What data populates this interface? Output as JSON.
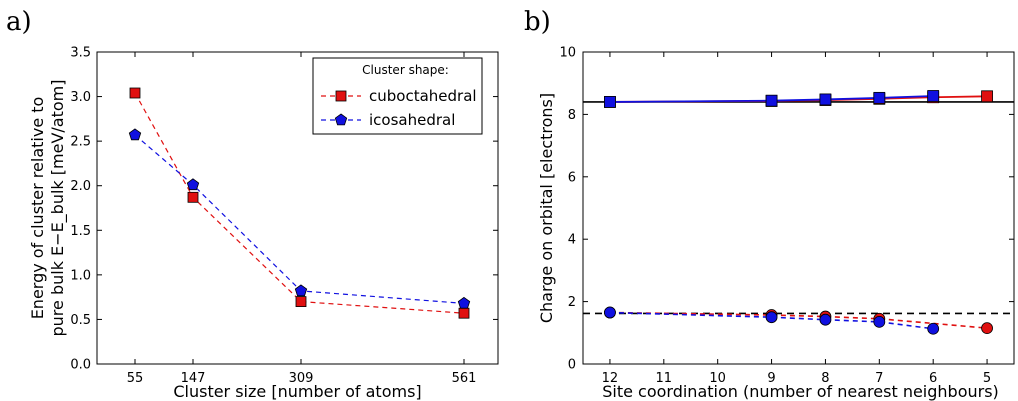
{
  "chart_data": [
    {
      "panel_label": "a)",
      "type": "line",
      "x": [
        55,
        147,
        309,
        561
      ],
      "xlabel": "Cluster size [number of atoms]",
      "ylabel_lines": [
        "Energy of cluster relative to",
        "pure bulk E−E_bulk [meV/atom]"
      ],
      "ylim": [
        0.0,
        3.5
      ],
      "y_ticks": [
        "0.0",
        "0.5",
        "1.0",
        "1.5",
        "2.0",
        "2.5",
        "3.0",
        "3.5"
      ],
      "x_ticks": [
        "55",
        "147",
        "309",
        "561"
      ],
      "legend": {
        "title": "Cluster shape:",
        "placement": "top-right"
      },
      "series": [
        {
          "name": "cuboctahedral",
          "color": "#e01010",
          "marker": "square",
          "dashed": true,
          "values": [
            3.04,
            1.87,
            0.7,
            0.57
          ]
        },
        {
          "name": "icosahedral",
          "color": "#1010e0",
          "marker": "pentagon",
          "dashed": true,
          "values": [
            2.57,
            2.01,
            0.82,
            0.68
          ]
        }
      ]
    },
    {
      "panel_label": "b)",
      "type": "line",
      "x": [
        12,
        9,
        8,
        7,
        6,
        5
      ],
      "x_ticks": [
        "12",
        "11",
        "10",
        "9",
        "8",
        "7",
        "6",
        "5"
      ],
      "xlabel": "Site coordination (number of nearest neighbours)",
      "ylabel": "Charge on orbital [electrons]",
      "ylim": [
        0,
        10
      ],
      "y_ticks": [
        "0",
        "2",
        "4",
        "6",
        "8",
        "10"
      ],
      "reference_lines": [
        {
          "y": 8.4,
          "style": "solid",
          "color": "#000000"
        },
        {
          "y": 1.62,
          "style": "dashed",
          "color": "#000000"
        }
      ],
      "series": [
        {
          "color": "#e01010",
          "marker": "square",
          "dashed": false,
          "x": [
            12,
            9,
            8,
            7,
            6,
            5
          ],
          "values": [
            8.4,
            8.43,
            8.46,
            8.5,
            8.55,
            8.58
          ]
        },
        {
          "color": "#1010e0",
          "marker": "square",
          "dashed": false,
          "x": [
            12,
            9,
            8,
            7,
            6
          ],
          "values": [
            8.4,
            8.44,
            8.48,
            8.53,
            8.59
          ]
        },
        {
          "color": "#e01010",
          "marker": "circle",
          "dashed": true,
          "x": [
            12,
            9,
            8,
            7,
            5
          ],
          "values": [
            1.65,
            1.57,
            1.52,
            1.45,
            1.15
          ]
        },
        {
          "color": "#1010e0",
          "marker": "circle",
          "dashed": true,
          "x": [
            12,
            9,
            8,
            7,
            6
          ],
          "values": [
            1.65,
            1.5,
            1.42,
            1.35,
            1.13
          ]
        }
      ]
    }
  ]
}
